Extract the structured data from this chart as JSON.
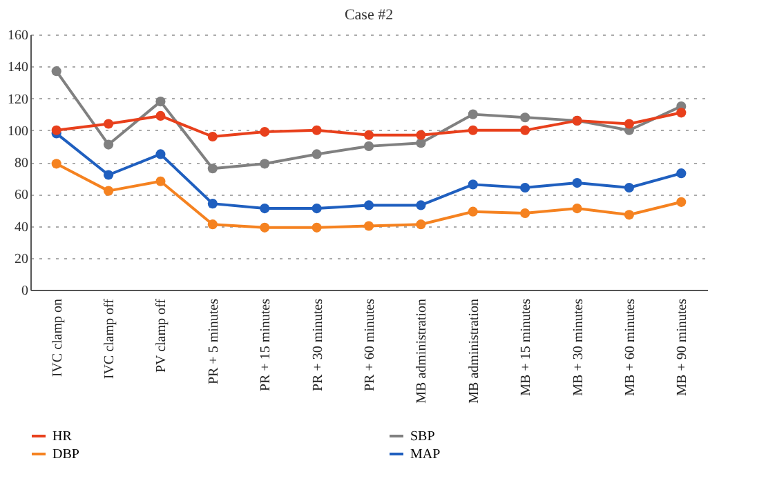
{
  "chart_data": {
    "type": "line",
    "title": "Case #2",
    "categories": [
      "IVC clamp on",
      "IVC clamp off",
      "PV clamp off",
      "PR + 5 minutes",
      "PR + 15 minutes",
      "PR + 30 minutes",
      "PR + 60 minutes",
      "MB administration",
      "MB administration",
      "MB + 15 minutes",
      "MB + 30 minutes",
      "MB + 60 minutes",
      "MB + 90 minutes"
    ],
    "series": [
      {
        "name": "HR",
        "color": "#e8401c",
        "values": [
          100,
          104,
          109,
          96,
          99,
          100,
          97,
          97,
          100,
          100,
          106,
          104,
          111
        ]
      },
      {
        "name": "SBP",
        "color": "#808080",
        "values": [
          137,
          91,
          118,
          76,
          79,
          85,
          90,
          92,
          110,
          108,
          106,
          100,
          115
        ]
      },
      {
        "name": "DBP",
        "color": "#f58220",
        "values": [
          79,
          62,
          68,
          41,
          39,
          39,
          40,
          41,
          49,
          48,
          51,
          47,
          55
        ]
      },
      {
        "name": "MAP",
        "color": "#1f5fbf",
        "values": [
          98,
          72,
          85,
          54,
          51,
          51,
          53,
          53,
          66,
          64,
          67,
          64,
          73
        ]
      }
    ],
    "ylim": [
      0,
      160
    ],
    "yticks": [
      0,
      20,
      40,
      60,
      80,
      100,
      120,
      140,
      160
    ],
    "grid": "y",
    "legend": "bottom",
    "marker": "circle",
    "line_style": "solid"
  }
}
